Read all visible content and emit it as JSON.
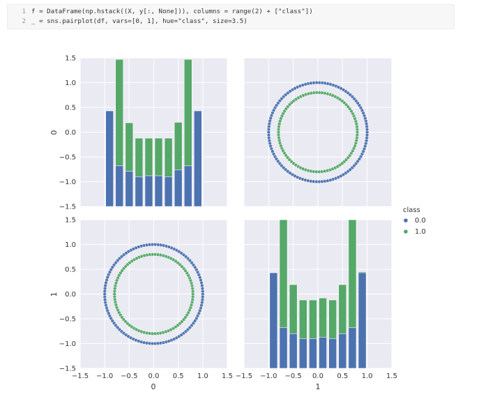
{
  "code": {
    "lines": [
      {
        "num": "1",
        "text": "f = DataFrame(np.hstack((X, y[:, None])), columns = range(2) + [\"class\"])"
      },
      {
        "num": "2",
        "text": "_ = sns.pairplot(df, vars=[0, 1], hue=\"class\", size=3.5)"
      }
    ]
  },
  "colors": {
    "class0": "#4c72b0",
    "class1": "#55a868",
    "panel": "#eaeaf2",
    "grid": "#ffffff"
  },
  "chart_data": {
    "type": "pairplot",
    "variables": [
      "0",
      "1"
    ],
    "ticks": [
      "−1.5",
      "−1.0",
      "−0.5",
      "0.0",
      "0.5",
      "1.0",
      "1.5"
    ],
    "tick_values": [
      -1.5,
      -1.0,
      -0.5,
      0.0,
      0.5,
      1.0,
      1.5
    ],
    "xlim": [
      -1.5,
      1.5
    ],
    "ylim": [
      -1.5,
      1.5
    ],
    "grid": true,
    "legend": {
      "title": "class",
      "placement": "right",
      "entries": [
        "0.0",
        "1.0"
      ]
    },
    "hist_bins": [
      -1.0,
      -0.8,
      -0.6,
      -0.4,
      -0.2,
      0.0,
      0.2,
      0.4,
      0.6,
      0.8,
      1.0
    ],
    "hist_var0": {
      "class_0_top": [
        0.43,
        -0.68,
        -0.79,
        -0.9,
        -0.88,
        -0.88,
        -0.9,
        -0.76,
        -0.68,
        0.43
      ],
      "class_1_top": [
        0.43,
        1.47,
        0.19,
        -0.12,
        -0.12,
        -0.12,
        -0.12,
        0.2,
        1.47,
        0.44
      ]
    },
    "hist_var1": {
      "class_0_top": [
        0.43,
        -0.68,
        -0.8,
        -0.9,
        -0.9,
        -0.87,
        -0.9,
        -0.8,
        -0.68,
        0.43
      ],
      "class_1_top": [
        0.43,
        1.5,
        0.19,
        -0.12,
        -0.12,
        -0.08,
        -0.12,
        0.19,
        1.5,
        0.45
      ]
    },
    "scatter": [
      {
        "class": "0.0",
        "shape": "circle",
        "radius": 1.0,
        "center": [
          0,
          0
        ]
      },
      {
        "class": "1.0",
        "shape": "circle",
        "radius": 0.8,
        "center": [
          0,
          0
        ]
      }
    ]
  }
}
